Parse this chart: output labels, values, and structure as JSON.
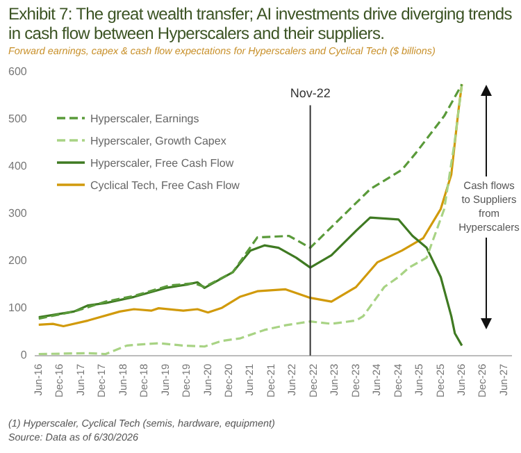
{
  "chart_data": {
    "type": "line",
    "title": "Exhibit 7: The great wealth transfer; AI investments drive diverging trends in cash flow between Hyperscalers and their suppliers.",
    "subtitle": "Forward earnings, capex & cash flow expectations for Hyperscalers and Cyclical Tech ($ billions)",
    "series": [
      {
        "name": "Hyperscaler, Earnings",
        "color": "#5a9a3a",
        "line_style": "dashed",
        "x": [
          "2016-06",
          "2017-04",
          "2018-01",
          "2018-09",
          "2019-07",
          "2020-02",
          "2020-05",
          "2021-01",
          "2021-08",
          "2022-05",
          "2022-11",
          "2023-06",
          "2024-04",
          "2025-01",
          "2025-05",
          "2026-01",
          "2026-06"
        ],
        "values": [
          78,
          93,
          114,
          126,
          148,
          153,
          145,
          176,
          250,
          253,
          228,
          279,
          352,
          393,
          429,
          507,
          574
        ]
      },
      {
        "name": "Hyperscaler, Growth Capex",
        "color": "#a8d384",
        "line_style": "dashed",
        "x": [
          "2016-06",
          "2017-08",
          "2018-01",
          "2018-07",
          "2018-12",
          "2019-04",
          "2019-11",
          "2020-05",
          "2020-10",
          "2021-03",
          "2021-10",
          "2022-04",
          "2022-11",
          "2023-05",
          "2023-12",
          "2024-02",
          "2024-08",
          "2024-12",
          "2025-03",
          "2025-08",
          "2026-01",
          "2026-04",
          "2026-06"
        ],
        "values": [
          3,
          5,
          3,
          21,
          24,
          26,
          21,
          19,
          31,
          36,
          54,
          64,
          72,
          67,
          74,
          83,
          145,
          166,
          186,
          207,
          310,
          455,
          574
        ]
      },
      {
        "name": "Hyperscaler, Free Cash Flow",
        "color": "#3f7a22",
        "line_style": "solid",
        "x": [
          "2016-06",
          "2017-04",
          "2017-08",
          "2018-01",
          "2018-09",
          "2019-06",
          "2019-12",
          "2020-03",
          "2020-05",
          "2021-01",
          "2021-06",
          "2021-10",
          "2022-02",
          "2022-07",
          "2022-11",
          "2023-05",
          "2023-12",
          "2024-04",
          "2024-12",
          "2025-04",
          "2025-08",
          "2025-12",
          "2026-03",
          "2026-04",
          "2026-06"
        ],
        "values": [
          81,
          93,
          106,
          111,
          124,
          143,
          150,
          155,
          143,
          176,
          222,
          233,
          228,
          207,
          186,
          212,
          264,
          292,
          288,
          253,
          228,
          166,
          83,
          47,
          21
        ]
      },
      {
        "name": "Cyclical Tech, Free Cash Flow",
        "color": "#d19a0b",
        "line_style": "solid",
        "x": [
          "2016-06",
          "2016-10",
          "2017-01",
          "2017-08",
          "2018-05",
          "2018-09",
          "2019-02",
          "2019-04",
          "2019-11",
          "2020-03",
          "2020-06",
          "2020-10",
          "2021-03",
          "2021-08",
          "2022-04",
          "2022-11",
          "2023-05",
          "2023-12",
          "2024-06",
          "2025-01",
          "2025-07",
          "2025-12",
          "2026-03",
          "2026-05",
          "2026-06"
        ],
        "values": [
          65,
          67,
          62,
          74,
          93,
          98,
          95,
          100,
          95,
          98,
          91,
          101,
          124,
          136,
          140,
          122,
          114,
          145,
          197,
          222,
          248,
          310,
          383,
          517,
          574
        ]
      }
    ],
    "xlim": [
      "2016-05",
      "2027-08"
    ],
    "xticks": [
      {
        "value": "2016-06",
        "label": "Jun-16"
      },
      {
        "value": "2016-12",
        "label": "Dec-16"
      },
      {
        "value": "2017-06",
        "label": "Jun-17"
      },
      {
        "value": "2017-12",
        "label": "Dec-17"
      },
      {
        "value": "2018-06",
        "label": "Jun-18"
      },
      {
        "value": "2018-12",
        "label": "Dec-18"
      },
      {
        "value": "2019-06",
        "label": "Jun-19"
      },
      {
        "value": "2019-12",
        "label": "Dec-19"
      },
      {
        "value": "2020-06",
        "label": "Jun-20"
      },
      {
        "value": "2020-12",
        "label": "Dec-20"
      },
      {
        "value": "2021-06",
        "label": "Jun-21"
      },
      {
        "value": "2021-12",
        "label": "Dec-21"
      },
      {
        "value": "2022-06",
        "label": "Jun-22"
      },
      {
        "value": "2022-12",
        "label": "Dec-22"
      },
      {
        "value": "2023-06",
        "label": "Jun-23"
      },
      {
        "value": "2023-12",
        "label": "Dec-23"
      },
      {
        "value": "2024-06",
        "label": "Jun-24"
      },
      {
        "value": "2024-12",
        "label": "Dec-24"
      },
      {
        "value": "2025-06",
        "label": "Jun-25"
      },
      {
        "value": "2025-12",
        "label": "Dec-25"
      },
      {
        "value": "2026-06",
        "label": "Jun-26"
      },
      {
        "value": "2026-12",
        "label": "Dec-26"
      },
      {
        "value": "2027-06",
        "label": "Jun-27"
      }
    ],
    "ylim": [
      0,
      600
    ],
    "yticks": [
      0,
      100,
      200,
      300,
      400,
      500,
      600
    ],
    "grid": false,
    "legend": "top left",
    "marker": "none",
    "ref_lines": [
      {
        "axis": "x",
        "value": "2022-11",
        "label": "Nov-22",
        "color": "#333333"
      }
    ],
    "annotations": [
      "Cash flows to Suppliers from Hyperscalers",
      "(1) Hyperscaler, Cyclical Tech (semis, hardware, equipment)",
      "Source: Data as of 6/30/2026"
    ]
  }
}
